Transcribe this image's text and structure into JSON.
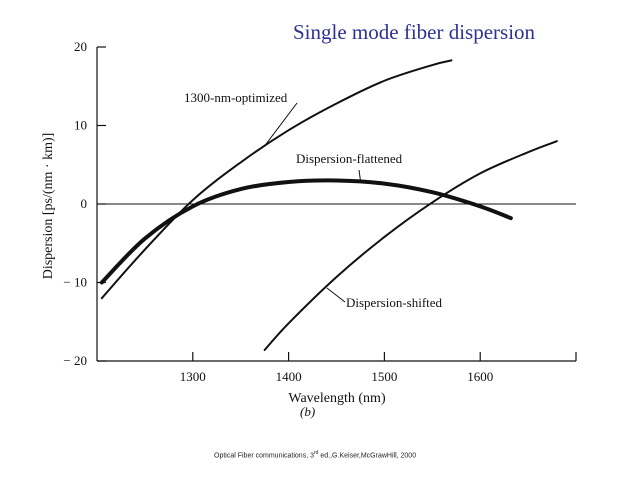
{
  "slide": {
    "title": "Single mode fiber dispersion",
    "sub_caption": "(b)",
    "citation_prefix": "Optical Fiber communications, 3",
    "citation_sup": "rd",
    "citation_suffix": " ed.,G.Keiser,McGrawHill, 2000"
  },
  "chart_data": {
    "type": "line",
    "title": "Single mode fiber dispersion",
    "xlabel": "Wavelength (nm)",
    "ylabel": "Dispersion [ps/(nm · km)]",
    "xlim": [
      1200,
      1700
    ],
    "ylim": [
      -20,
      20
    ],
    "x_ticks": [
      1300,
      1400,
      1500,
      1600
    ],
    "x_tick_labels": [
      "1300",
      "1400",
      "1500",
      "1600"
    ],
    "y_ticks": [
      20,
      10,
      0,
      -10,
      -20
    ],
    "y_tick_labels": [
      "20",
      "10",
      "0",
      "− 10",
      "− 20"
    ],
    "zero_line": true,
    "grid": false,
    "series": [
      {
        "name": "1300-nm-optimized",
        "line_weight": "normal",
        "x": [
          1205,
          1250,
          1300,
          1350,
          1400,
          1450,
          1500,
          1550,
          1570
        ],
        "y": [
          -12,
          -5.8,
          0.5,
          5.3,
          9.4,
          12.8,
          15.7,
          17.7,
          18.3
        ]
      },
      {
        "name": "Dispersion-flattened",
        "line_weight": "bold",
        "x": [
          1205,
          1250,
          1300,
          1350,
          1400,
          1450,
          1500,
          1550,
          1600,
          1632
        ],
        "y": [
          -10,
          -4.4,
          -0.3,
          1.9,
          2.8,
          3.0,
          2.6,
          1.5,
          -0.3,
          -1.8
        ]
      },
      {
        "name": "Dispersion-shifted",
        "line_weight": "normal",
        "x": [
          1375,
          1400,
          1450,
          1500,
          1550,
          1600,
          1650,
          1680
        ],
        "y": [
          -18.6,
          -15.2,
          -9.3,
          -4.2,
          0.2,
          3.9,
          6.6,
          8.0
        ]
      }
    ],
    "annotations": [
      {
        "text": "1300-nm-optimized",
        "series": "1300-nm-optimized",
        "point": [
          1375,
          7.4
        ]
      },
      {
        "text": "Dispersion-flattened",
        "series": "Dispersion-flattened",
        "point": [
          1475,
          3.0
        ]
      },
      {
        "text": "Dispersion-shifted",
        "series": "Dispersion-shifted",
        "point": [
          1440,
          -10.7
        ]
      }
    ]
  }
}
